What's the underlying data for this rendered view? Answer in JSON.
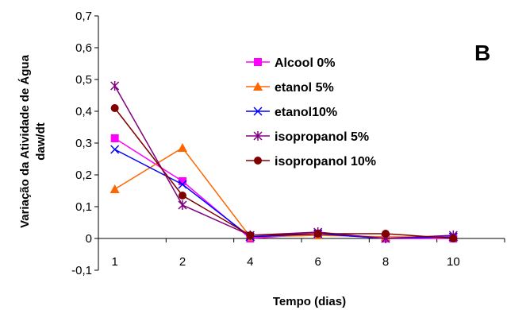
{
  "chart_data": {
    "type": "line",
    "panel_label": "B",
    "xlabel": "Tempo (dias)",
    "ylabel_lines": [
      "Variação da Atividade de Água",
      "daw/dt"
    ],
    "categories": [
      "1",
      "2",
      "4",
      "6",
      "8",
      "10"
    ],
    "ylim": [
      -0.1,
      0.7
    ],
    "yticks": [
      "-0,1",
      "0",
      "0,1",
      "0,2",
      "0,3",
      "0,4",
      "0,5",
      "0,6",
      "0,7"
    ],
    "grid": false,
    "legend_position": "right",
    "series": [
      {
        "name": "Alcool 0%",
        "color": "#ff00ff",
        "marker": "square",
        "values": [
          0.315,
          0.18,
          0.0,
          0.015,
          0.0,
          0.0
        ]
      },
      {
        "name": "etanol 5%",
        "color": "#ff6600",
        "marker": "triangle",
        "values": [
          0.155,
          0.285,
          0.005,
          0.01,
          0.005,
          0.005
        ]
      },
      {
        "name": "etanol10%",
        "color": "#0000ff",
        "marker": "x",
        "values": [
          0.28,
          0.17,
          0.005,
          0.015,
          0.0,
          0.005
        ]
      },
      {
        "name": "isopropanol 5%",
        "color": "#800080",
        "marker": "star",
        "values": [
          0.48,
          0.105,
          0.01,
          0.02,
          0.0,
          0.01
        ]
      },
      {
        "name": "isopropanol 10%",
        "color": "#800000",
        "marker": "circle",
        "values": [
          0.41,
          0.135,
          0.01,
          0.015,
          0.015,
          0.0
        ]
      }
    ]
  }
}
